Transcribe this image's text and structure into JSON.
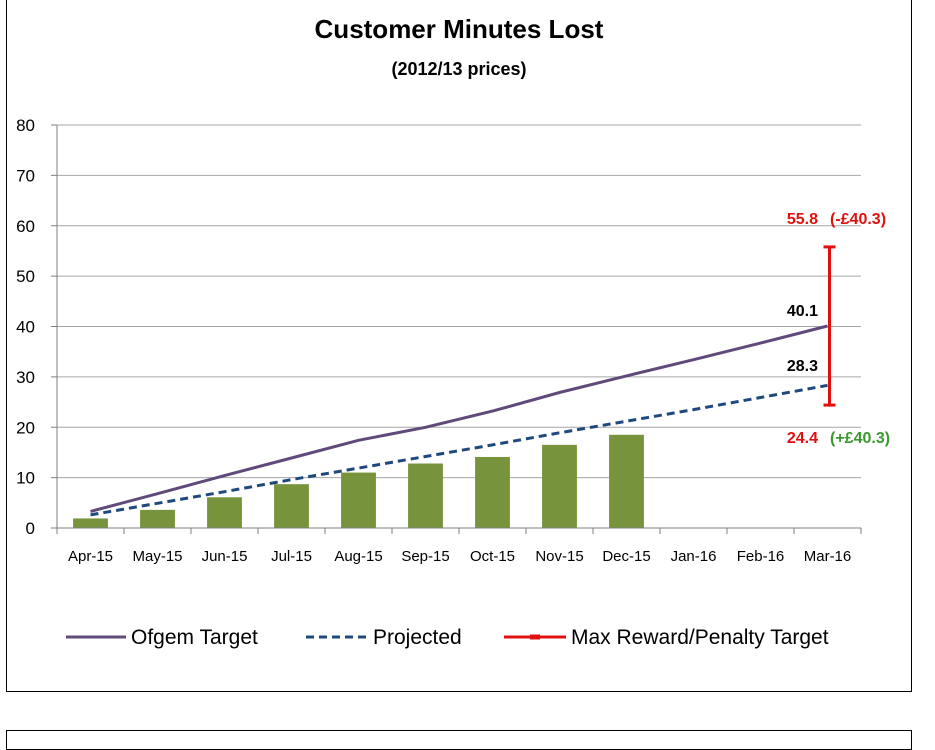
{
  "colors": {
    "bar": "#77933c",
    "target": "#604a7b",
    "projected": "#1f497d",
    "range": "#e0100f",
    "penalty_text": "#e0100f",
    "reward_text": "#3a9a2f",
    "grid": "#a6a6a6"
  },
  "chart_data": {
    "type": "bar",
    "title": "Customer Minutes Lost",
    "subtitle": "(2012/13 prices)",
    "categories": [
      "Apr-15",
      "May-15",
      "Jun-15",
      "Jul-15",
      "Aug-15",
      "Sep-15",
      "Oct-15",
      "Nov-15",
      "Dec-15",
      "Jan-16",
      "Feb-16",
      "Mar-16"
    ],
    "ylim": [
      0,
      80
    ],
    "yticks": [
      "0",
      "10",
      "20",
      "30",
      "40",
      "50",
      "60",
      "70",
      "80"
    ],
    "grid": true,
    "legend_position": "bottom",
    "series": [
      {
        "type": "bar",
        "values": [
          1.9,
          3.6,
          6.1,
          8.7,
          11.0,
          12.8,
          14.1,
          16.5,
          18.5,
          null,
          null,
          null
        ]
      },
      {
        "name": "Ofgem Target",
        "type": "line",
        "style": "solid",
        "values": [
          3.3,
          6.8,
          10.4,
          13.9,
          17.4,
          20.0,
          23.2,
          26.9,
          30.2,
          33.4,
          36.7,
          40.1
        ]
      },
      {
        "name": "Projected",
        "type": "line",
        "style": "dashed",
        "values": [
          2.6,
          4.9,
          7.2,
          9.6,
          11.9,
          14.2,
          16.5,
          18.9,
          21.2,
          23.5,
          25.9,
          28.3
        ]
      },
      {
        "name": "Max Reward/Penalty Target",
        "type": "range",
        "category": "Mar-16",
        "low": 24.4,
        "high": 55.8
      }
    ],
    "annotations": {
      "target_end": "40.1",
      "projected_end": "28.3",
      "high_value": "55.8",
      "high_money": "(-£40.3)",
      "low_value": "24.4",
      "low_money": "(+£40.3)"
    }
  }
}
